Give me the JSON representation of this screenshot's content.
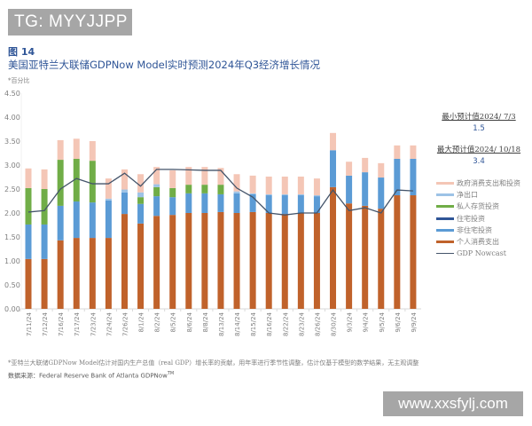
{
  "watermark_top": "TG: MYYJJPP",
  "watermark_bottom": "www.xxsfylj.com",
  "figure": {
    "number": "图 14",
    "title": "美国亚特兰大联储GDPNow Model实时预测2024年Q3经济增长情况",
    "unit": "*百分比"
  },
  "annotations": {
    "min_label": "最小预计值2024/ 7/3",
    "min_value": "1.5",
    "max_label": "最大预计值2024/ 10/18",
    "max_value": "3.4"
  },
  "legend": [
    {
      "key": "gov",
      "label": "政府消费支出和投资",
      "color": "#f4c6b6",
      "kind": "bar"
    },
    {
      "key": "netexp",
      "label": "净出口",
      "color": "#9dc3e6",
      "kind": "bar"
    },
    {
      "key": "inventory",
      "label": "私人存货投资",
      "color": "#70ad47",
      "kind": "bar"
    },
    {
      "key": "residential",
      "label": "住宅投资",
      "color": "#2f5597",
      "kind": "bar"
    },
    {
      "key": "nonres",
      "label": "非住宅投资",
      "color": "#5b9bd5",
      "kind": "bar"
    },
    {
      "key": "pce",
      "label": "个人消费支出",
      "color": "#c0622b",
      "kind": "bar"
    },
    {
      "key": "nowcast",
      "label": "GDP Nowcast",
      "color": "#44546a",
      "kind": "line"
    }
  ],
  "footer": {
    "note": "*亚特兰大联储GDPNow Model估计对国内生产总值（real GDP）增长率的贡献，用年率进行季节性调整，估计仅基于模型的数学结果，无主观调整",
    "source": "数据来源：Federal Reserve Bank of Atlanta GDPNow",
    "source_tm": "TM"
  },
  "chart_data": {
    "type": "bar",
    "stacked": true,
    "title": "美国亚特兰大联储GDPNow Model实时预测2024年Q3经济增长情况",
    "xlabel": "",
    "ylabel": "百分比",
    "ylim": [
      0,
      4.5
    ],
    "yticks": [
      "0.00",
      "0.50",
      "1.00",
      "1.50",
      "2.00",
      "2.50",
      "3.00",
      "3.50",
      "4.00",
      "4.50"
    ],
    "grid": false,
    "legend_position": "right",
    "categories": [
      "7/11/24",
      "7/12/24",
      "7/16/24",
      "7/17/24",
      "7/23/24",
      "7/24/24",
      "7/26/24",
      "8/1/24",
      "8/2/24",
      "8/5/24",
      "8/6/24",
      "8/8/24",
      "8/13/24",
      "8/14/24",
      "8/15/24",
      "8/16/24",
      "8/22/24",
      "8/23/24",
      "8/26/24",
      "8/30/24",
      "9/3/24",
      "9/4/24",
      "9/5/24",
      "9/6/24",
      "9/9/24"
    ],
    "series": [
      {
        "name": "个人消费支出",
        "key": "pce",
        "values": [
          1.04,
          1.04,
          1.43,
          1.48,
          1.48,
          1.48,
          1.98,
          1.78,
          1.94,
          1.96,
          2.0,
          2.0,
          2.02,
          2.0,
          2.02,
          2.0,
          1.98,
          2.0,
          2.0,
          2.54,
          2.2,
          2.15,
          2.09,
          2.37,
          2.37
        ]
      },
      {
        "name": "非住宅投资",
        "key": "nonres",
        "values": [
          0.72,
          0.72,
          0.72,
          0.76,
          0.74,
          0.78,
          0.45,
          0.41,
          0.41,
          0.37,
          0.41,
          0.41,
          0.37,
          0.41,
          0.37,
          0.37,
          0.39,
          0.37,
          0.35,
          0.77,
          0.58,
          0.7,
          0.65,
          0.76,
          0.76
        ]
      },
      {
        "name": "住宅投资",
        "key": "residential",
        "values": [
          0,
          0,
          0,
          0,
          0,
          0,
          0,
          0,
          0,
          0,
          0,
          0,
          0,
          0,
          0,
          0,
          0,
          0,
          0,
          0,
          0,
          0,
          0,
          0,
          0
        ]
      },
      {
        "name": "私人存货投资",
        "key": "inventory",
        "values": [
          0.76,
          0.74,
          0.96,
          0.89,
          0.87,
          0,
          0,
          0.14,
          0.19,
          0.19,
          0.18,
          0.18,
          0.2,
          0,
          0,
          0,
          0,
          0,
          0,
          0,
          0,
          0,
          0,
          0,
          0
        ]
      },
      {
        "name": "净出口",
        "key": "netexp",
        "values": [
          0,
          0,
          0,
          0,
          0,
          0.04,
          0.06,
          0.1,
          0.06,
          0,
          0,
          0,
          0,
          0.04,
          0.02,
          0.02,
          0.02,
          0.02,
          0.02,
          0,
          0,
          0,
          0,
          0,
          0
        ]
      },
      {
        "name": "政府消费支出和投资",
        "key": "gov",
        "values": [
          0.41,
          0.41,
          0.41,
          0.42,
          0.41,
          0.42,
          0.42,
          0.38,
          0.36,
          0.37,
          0.37,
          0.37,
          0.35,
          0.36,
          0.37,
          0.37,
          0.37,
          0.37,
          0.35,
          0.36,
          0.29,
          0.3,
          0.3,
          0.28,
          0.28
        ]
      },
      {
        "name": "GDP Nowcast",
        "key": "nowcast",
        "type": "line",
        "values": [
          2.02,
          2.05,
          2.5,
          2.72,
          2.61,
          2.61,
          2.83,
          2.56,
          2.91,
          2.91,
          2.9,
          2.89,
          2.89,
          2.52,
          2.33,
          2.0,
          1.96,
          2.0,
          2.0,
          2.48,
          2.05,
          2.11,
          2.0,
          2.48,
          2.46
        ]
      }
    ]
  }
}
